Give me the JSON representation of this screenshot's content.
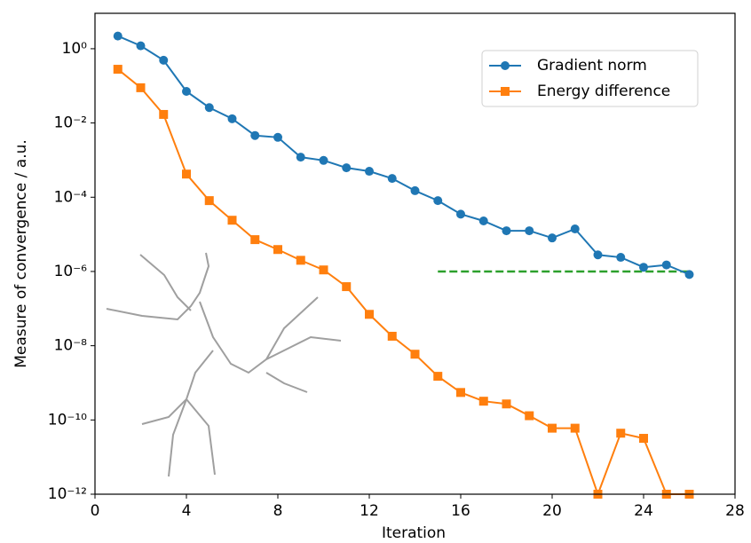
{
  "chart_data": {
    "type": "line",
    "x_label": "Iteration",
    "y_label": "Measure of convergence / a.u.",
    "x": [
      1,
      2,
      3,
      4,
      5,
      6,
      7,
      8,
      9,
      10,
      11,
      12,
      13,
      14,
      15,
      16,
      17,
      18,
      19,
      20,
      21,
      22,
      23,
      24,
      25,
      26
    ],
    "series": [
      {
        "name": "Gradient norm",
        "color": "#1f77b4",
        "marker": "circle",
        "values": [
          2.2,
          1.2,
          0.49,
          0.071,
          0.026,
          0.013,
          0.0046,
          0.0041,
          0.0012,
          0.00098,
          0.00062,
          0.0005,
          0.00032,
          0.00015,
          8.1e-05,
          3.5e-05,
          2.3e-05,
          1.25e-05,
          1.25e-05,
          8e-06,
          1.4e-05,
          2.8e-06,
          2.4e-06,
          1.3e-06,
          1.5e-06,
          8.3e-07
        ]
      },
      {
        "name": "Energy difference",
        "color": "#ff7f0e",
        "marker": "square",
        "values": [
          0.28,
          0.089,
          0.017,
          0.00042,
          8.1e-05,
          2.4e-05,
          7.2e-06,
          3.9e-06,
          2e-06,
          1.1e-06,
          3.9e-07,
          7e-08,
          1.8e-08,
          5.9e-09,
          1.5e-09,
          5.5e-10,
          3.2e-10,
          2.7e-10,
          1.3e-10,
          6e-11,
          6e-11,
          1e-12,
          4.4e-11,
          3.2e-11,
          1e-12,
          1e-12
        ]
      }
    ],
    "reference_line": {
      "x": [
        15,
        26
      ],
      "value": 1e-06,
      "color": "#2ca02c"
    },
    "xlim": [
      0,
      28
    ],
    "xticks": [
      0,
      4,
      8,
      12,
      16,
      20,
      24,
      28
    ],
    "ylim": [
      1e-12,
      9
    ],
    "log_y": true,
    "yticks": [
      {
        "value": 1e-12,
        "label": "10⁻¹²"
      },
      {
        "value": 1e-10,
        "label": "10⁻¹⁰"
      },
      {
        "value": 1e-08,
        "label": "10⁻⁸"
      },
      {
        "value": 1e-06,
        "label": "10⁻⁶"
      },
      {
        "value": 0.0001,
        "label": "10⁻⁴"
      },
      {
        "value": 0.01,
        "label": "10⁻²"
      },
      {
        "value": 1,
        "label": "10⁰"
      }
    ],
    "legend": "upper right"
  }
}
